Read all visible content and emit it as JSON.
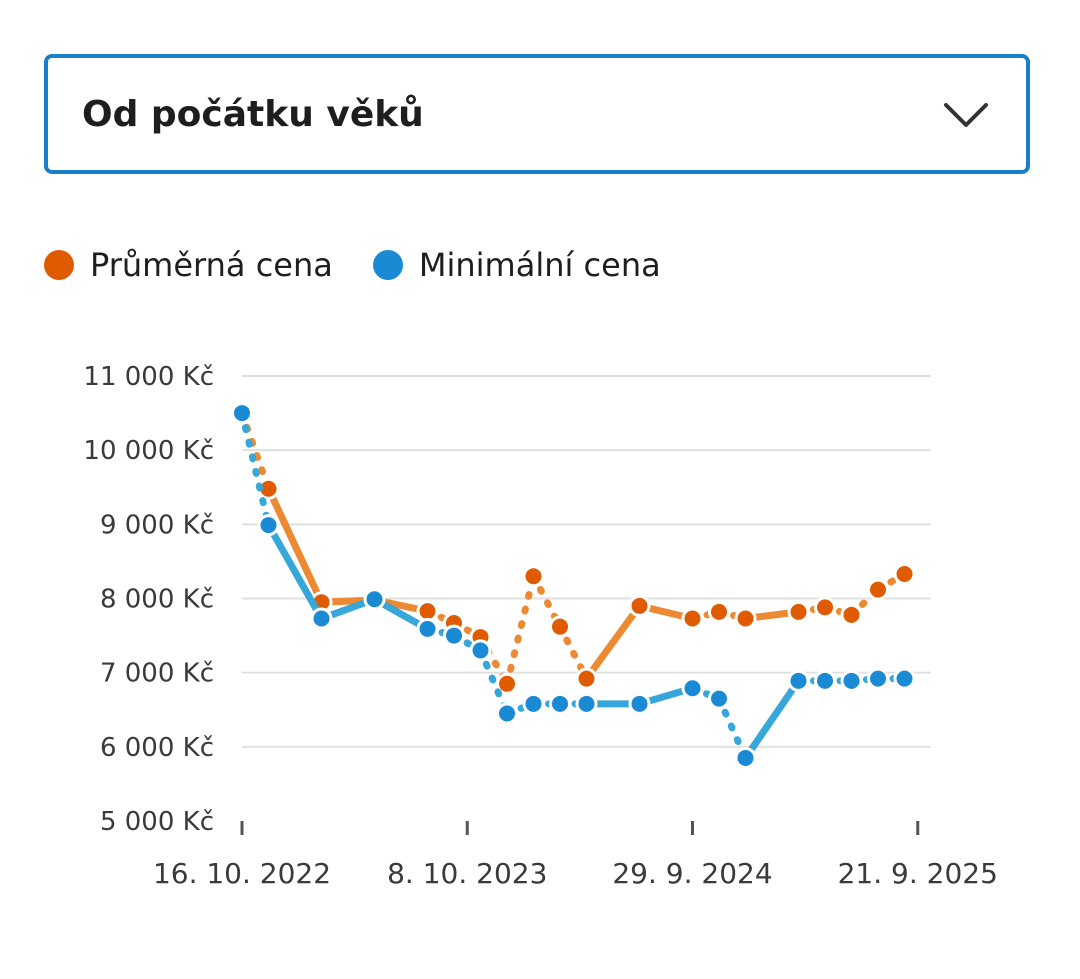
{
  "selector": {
    "value": "Od počátku věků",
    "icon": "chevron-down-icon"
  },
  "colors": {
    "average": "#e05a00",
    "minimum": "#1a8ad4",
    "average_line": "#ec8a33",
    "minimum_line": "#37a6d8",
    "grid": "#e0e0e0",
    "axis": "#555555"
  },
  "chart_data": {
    "type": "line",
    "x": [
      "2022-10-16",
      "2022-11-27",
      "2023-01-08",
      "2023-02-19",
      "2023-04-02",
      "2023-05-14",
      "2023-06-25",
      "2023-08-06",
      "2023-09-17",
      "2023-10-29",
      "2023-12-10",
      "2024-01-21",
      "2024-03-03",
      "2024-04-14",
      "2024-05-26",
      "2024-07-07",
      "2024-08-18",
      "2024-09-29",
      "2024-11-10",
      "2024-12-22",
      "2025-02-02",
      "2025-03-16",
      "2025-04-27",
      "2025-06-08",
      "2025-07-20",
      "2025-08-31",
      "2025-10-12"
    ],
    "series": [
      {
        "name": "Průměrná cena",
        "values": [
          10500,
          9480,
          null,
          7950,
          null,
          7980,
          null,
          7830,
          7670,
          7480,
          6850,
          8300,
          7620,
          6920,
          null,
          7900,
          null,
          7730,
          7820,
          7730,
          null,
          7820,
          7880,
          7780,
          8120,
          8330,
          null
        ]
      },
      {
        "name": "Minimální cena",
        "values": [
          10500,
          8990,
          null,
          7730,
          null,
          7990,
          null,
          7590,
          7500,
          7300,
          6450,
          6580,
          6580,
          6580,
          null,
          6580,
          null,
          6790,
          6650,
          5850,
          null,
          6890,
          6890,
          6890,
          6920,
          6920,
          null
        ]
      }
    ],
    "y_ticks": [
      "11 000 Kč",
      "10 000 Kč",
      "9 000 Kč",
      "8 000 Kč",
      "7 000 Kč",
      "6 000 Kč",
      "5 000 Kč"
    ],
    "x_ticks": [
      "16. 10. 2022",
      "8. 10. 2023",
      "29. 9. 2024",
      "21. 9. 2025"
    ],
    "ylim": [
      5000,
      11000
    ],
    "grid": true,
    "legend": "top-left"
  }
}
